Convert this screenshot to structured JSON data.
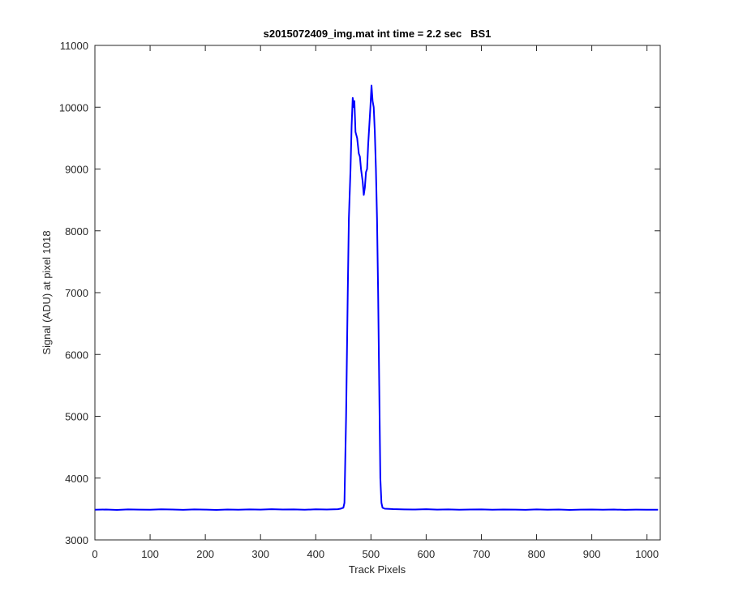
{
  "chart_data": {
    "type": "line",
    "title": "s2015072409_img.mat int time = 2.2 sec   BS1",
    "x_label": "Track Pixels",
    "y_label": "Signal (ADU) at pixel 1018",
    "x": [
      0,
      20,
      40,
      60,
      80,
      100,
      120,
      140,
      160,
      180,
      200,
      220,
      240,
      260,
      280,
      300,
      320,
      340,
      360,
      380,
      400,
      420,
      440,
      445,
      450,
      452,
      455,
      458,
      460,
      463,
      465,
      467,
      469,
      470,
      472,
      475,
      478,
      480,
      482,
      485,
      487,
      489,
      491,
      493,
      495,
      497,
      499,
      501,
      503,
      505,
      507,
      509,
      511,
      513,
      515,
      517,
      519,
      521,
      525,
      540,
      560,
      580,
      600,
      620,
      640,
      660,
      680,
      700,
      720,
      740,
      760,
      780,
      800,
      820,
      840,
      860,
      880,
      900,
      920,
      940,
      960,
      980,
      1000,
      1020
    ],
    "values": [
      3488,
      3492,
      3486,
      3494,
      3490,
      3489,
      3495,
      3491,
      3487,
      3493,
      3490,
      3486,
      3492,
      3489,
      3494,
      3490,
      3496,
      3491,
      3493,
      3488,
      3495,
      3492,
      3497,
      3505,
      3520,
      3600,
      5000,
      7000,
      8200,
      9000,
      9700,
      10150,
      10000,
      10100,
      9600,
      9500,
      9250,
      9200,
      9000,
      8800,
      8580,
      8700,
      8950,
      9000,
      9400,
      9700,
      10000,
      10350,
      10100,
      10000,
      9600,
      9000,
      8200,
      7000,
      5500,
      4000,
      3600,
      3520,
      3505,
      3498,
      3494,
      3492,
      3496,
      3490,
      3493,
      3489,
      3491,
      3494,
      3488,
      3492,
      3490,
      3487,
      3493,
      3489,
      3491,
      3486,
      3490,
      3492,
      3488,
      3491,
      3487,
      3490,
      3489,
      3488
    ],
    "color": "#0000ff",
    "xlim": [
      0,
      1024
    ],
    "ylim": [
      3000,
      11000
    ],
    "xticks": [
      0,
      100,
      200,
      300,
      400,
      500,
      600,
      700,
      800,
      900,
      1000
    ],
    "yticks": [
      3000,
      4000,
      5000,
      6000,
      7000,
      8000,
      9000,
      10000,
      11000
    ],
    "grid": false
  }
}
